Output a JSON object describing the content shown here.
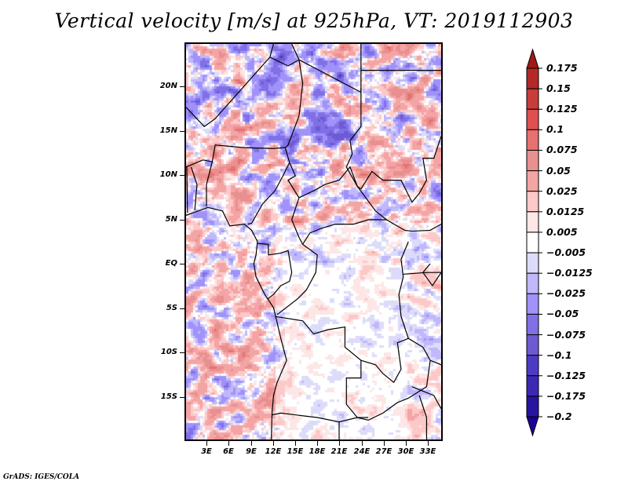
{
  "title": "Vertical velocity [m/s] at 925hPa, VT: 2019112903",
  "credit": "GrADS: IGES/COLA",
  "chart_data": {
    "type": "heatmap",
    "title": "Vertical velocity [m/s] at 925hPa, VT: 2019112903",
    "variable": "Vertical velocity",
    "units": "m/s",
    "level": "925hPa",
    "valid_time": "2019112903",
    "lon_range": [
      0,
      35
    ],
    "lat_range": [
      -20,
      25
    ],
    "xticks": [
      {
        "value": 3,
        "label": "3E"
      },
      {
        "value": 6,
        "label": "6E"
      },
      {
        "value": 9,
        "label": "9E"
      },
      {
        "value": 12,
        "label": "12E"
      },
      {
        "value": 15,
        "label": "15E"
      },
      {
        "value": 18,
        "label": "18E"
      },
      {
        "value": 21,
        "label": "21E"
      },
      {
        "value": 24,
        "label": "24E"
      },
      {
        "value": 27,
        "label": "27E"
      },
      {
        "value": 30,
        "label": "30E"
      },
      {
        "value": 33,
        "label": "33E"
      }
    ],
    "yticks": [
      {
        "value": 20,
        "label": "20N"
      },
      {
        "value": 15,
        "label": "15N"
      },
      {
        "value": 10,
        "label": "10N"
      },
      {
        "value": 5,
        "label": "5N"
      },
      {
        "value": 0,
        "label": "EQ"
      },
      {
        "value": -5,
        "label": "5S"
      },
      {
        "value": -10,
        "label": "10S"
      },
      {
        "value": -15,
        "label": "15S"
      }
    ],
    "colorbar": {
      "orientation": "vertical",
      "placement": "right",
      "extend": "both",
      "levels": [
        {
          "label": "0.175",
          "value": 0.175
        },
        {
          "label": "0.15",
          "value": 0.15
        },
        {
          "label": "0.125",
          "value": 0.125
        },
        {
          "label": "0.1",
          "value": 0.1
        },
        {
          "label": "0.075",
          "value": 0.075
        },
        {
          "label": "0.05",
          "value": 0.05
        },
        {
          "label": "0.025",
          "value": 0.025
        },
        {
          "label": "0.0125",
          "value": 0.0125
        },
        {
          "label": "0.005",
          "value": 0.005
        },
        {
          "label": "-0.005",
          "value": -0.005
        },
        {
          "label": "-0.0125",
          "value": -0.0125
        },
        {
          "label": "-0.025",
          "value": -0.025
        },
        {
          "label": "-0.05",
          "value": -0.05
        },
        {
          "label": "-0.075",
          "value": -0.075
        },
        {
          "label": "-0.1",
          "value": -0.1
        },
        {
          "label": "-0.125",
          "value": -0.125
        },
        {
          "label": "-0.175",
          "value": -0.175
        },
        {
          "label": "-0.2",
          "value": -0.2
        }
      ],
      "colors": [
        "#a01818",
        "#b42828",
        "#c83c3c",
        "#e05050",
        "#e87070",
        "#e89090",
        "#f4a4a4",
        "#fcc8c8",
        "#fde6e6",
        "#ffffff",
        "#dcdcfa",
        "#c0b8fa",
        "#a092fa",
        "#8070e6",
        "#6e5ad2",
        "#4c3cc4",
        "#3c28b4",
        "#2814a0",
        "#1e0096"
      ]
    },
    "features": [
      "coastlines",
      "country borders",
      "lakes"
    ],
    "notes": "Field shows small-scale alternating positive (red) and negative (blue) vertical velocity; large near-zero (white) region over southern Congo basin / Angola / Zambia."
  }
}
